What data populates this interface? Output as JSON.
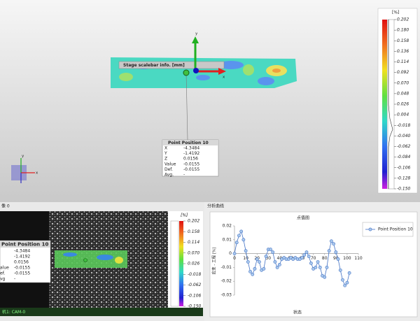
{
  "viewport": {
    "overlay_label": "Stage scalebar info. [mm]",
    "axis_x": "x",
    "axis_y": "y",
    "mini_axis_x": "x",
    "mini_axis_y": "y",
    "legend_unit": "[%]",
    "clim": [
      -0.15,
      0.202
    ],
    "legend_ticks": [
      0.202,
      {
        "value": 0.18,
        "label": "0.180"
      },
      0.158,
      0.136,
      0.114,
      0.092,
      {
        "value": 0.07,
        "label": "0.070"
      },
      0.048,
      0.026,
      0.004,
      -0.018,
      {
        "value": -0.04,
        "label": "-0.040"
      },
      -0.062,
      -0.084,
      -0.106,
      -0.128,
      {
        "value": -0.15,
        "label": "-0.150"
      }
    ]
  },
  "point_info": {
    "title": "Point Position 10",
    "rows": [
      [
        "X",
        "-4.3484"
      ],
      [
        "Y",
        "-1.4192"
      ],
      [
        "Z",
        "0.0156"
      ],
      [
        "Value",
        "-0.0155"
      ],
      [
        "Def.",
        "-0.0155"
      ],
      [
        "Avg.",
        "-"
      ]
    ]
  },
  "image_panel": {
    "title": "像 0",
    "camera_label": "机1: CAM-0",
    "legend_unit": "[%]",
    "clim": [
      -0.15,
      0.202
    ],
    "legend_ticks": [
      0.202,
      0.158,
      0.114,
      {
        "value": 0.07,
        "label": "0.070"
      },
      0.026,
      -0.018,
      -0.062,
      -0.106,
      {
        "value": -0.15,
        "label": "-0.150"
      }
    ],
    "info_title": "Point Position 10",
    "info_rows": [
      {
        "value": "-4.3484"
      },
      {
        "value": "-1.4192"
      },
      {
        "value": "0.0156"
      },
      {
        "label": "alue",
        "value": "-0.0155"
      },
      {
        "label": "ef.",
        "value": "-0.0155"
      },
      {
        "label": "vg",
        "value": "-"
      }
    ]
  },
  "chart_panel": {
    "title": "分析曲线"
  },
  "chart_data": {
    "type": "line",
    "title": "点值图",
    "x_label": "状态",
    "y_label": "应变 - 工程 [%]",
    "x": [
      0,
      2,
      4,
      6,
      8,
      10,
      12,
      14,
      16,
      18,
      20,
      22,
      24,
      26,
      28,
      30,
      32,
      34,
      36,
      38,
      40,
      42,
      44,
      46,
      48,
      50,
      52,
      54,
      56,
      58,
      60,
      62,
      64,
      66,
      68,
      70,
      72,
      74,
      76,
      78,
      80,
      82,
      84,
      86,
      88,
      90,
      92,
      94,
      96,
      98,
      100,
      102
    ],
    "series": [
      {
        "name": "Point Position 10",
        "color": "#4472c4",
        "values": [
          0,
          0.008,
          0.013,
          0.016,
          0.01,
          0.002,
          -0.006,
          -0.013,
          -0.015,
          -0.011,
          -0.004,
          -0.006,
          -0.012,
          -0.011,
          -0.002,
          0.003,
          0.003,
          0.001,
          -0.006,
          -0.01,
          -0.008,
          -0.004,
          -0.003,
          -0.004,
          -0.004,
          -0.003,
          -0.004,
          -0.003,
          -0.004,
          -0.004,
          -0.003,
          -0.001,
          0.001,
          -0.002,
          -0.007,
          -0.011,
          -0.01,
          -0.006,
          -0.01,
          -0.016,
          -0.017,
          -0.01,
          0.002,
          0.009,
          0.007,
          0.001,
          -0.004,
          -0.012,
          -0.019,
          -0.023,
          -0.021,
          -0.014
        ]
      }
    ],
    "xlim": [
      0,
      110
    ],
    "xticks": [
      0,
      10,
      20,
      30,
      40,
      50,
      60,
      70,
      80,
      90,
      100,
      110
    ],
    "ylim": [
      -0.03,
      0.02
    ],
    "yticks": [
      0.02,
      0.01,
      0,
      -0.01,
      -0.02,
      -0.03
    ]
  }
}
